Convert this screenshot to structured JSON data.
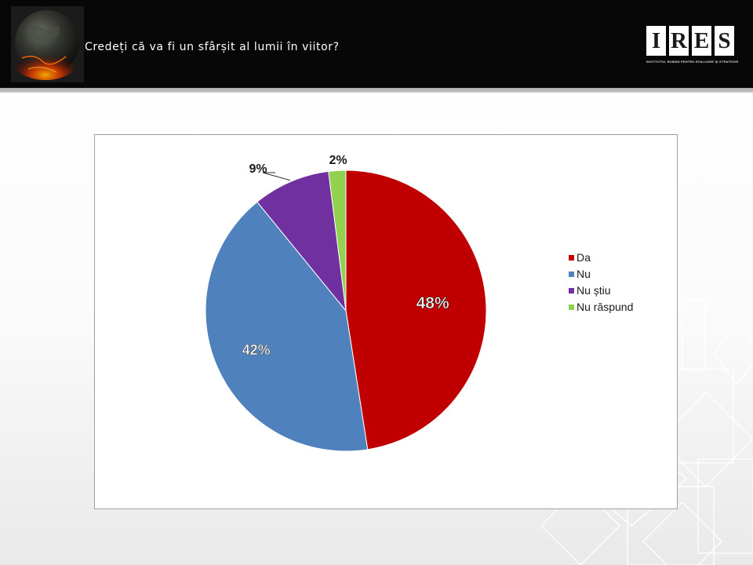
{
  "header": {
    "title": "Credeți că va fi un sfârșit al lumii în viitor?",
    "logo": {
      "letters": [
        "I",
        "R",
        "E",
        "S"
      ],
      "subtitle": "INSTITUTUL ROMÂN PENTRU EVALUARE ȘI STRATEGIE"
    }
  },
  "chart_data": {
    "type": "pie",
    "categories": [
      "Da",
      "Nu",
      "Nu știu",
      "Nu răspund"
    ],
    "values": [
      48,
      42,
      9,
      2
    ],
    "data_labels": [
      "48%",
      "42%",
      "9%",
      "2%"
    ],
    "colors": [
      "#C00000",
      "#4F81BD",
      "#7030A0",
      "#92D050"
    ],
    "legend_position": "right",
    "start_angle": "top",
    "direction": "clockwise"
  }
}
